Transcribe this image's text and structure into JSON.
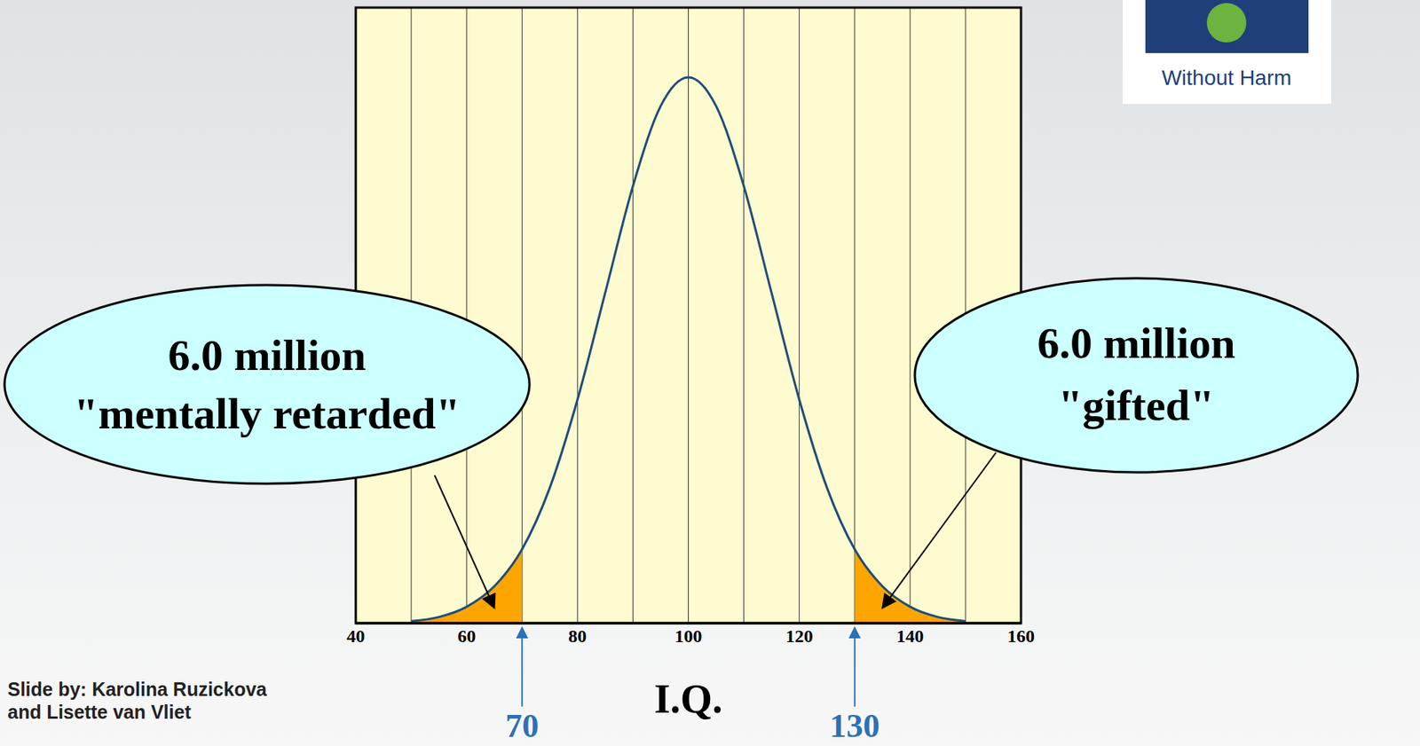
{
  "chart_data": {
    "type": "line",
    "x_label": "I.Q.",
    "x": [
      50,
      55,
      60,
      65,
      70,
      75,
      80,
      85,
      90,
      95,
      100,
      105,
      110,
      115,
      120,
      125,
      130,
      135,
      140,
      145,
      150
    ],
    "values": [
      0.0001,
      0.0003,
      0.0008,
      0.0018,
      0.0036,
      0.0066,
      0.0109,
      0.0161,
      0.0213,
      0.0252,
      0.0266,
      0.0252,
      0.0213,
      0.0161,
      0.0109,
      0.0066,
      0.0036,
      0.0018,
      0.0008,
      0.0003,
      0.0001
    ],
    "color": "#1f4e79",
    "xlim": [
      40,
      160
    ],
    "xticks": [
      40,
      60,
      80,
      100,
      120,
      140,
      160
    ],
    "ylim": [
      0,
      0.03
    ],
    "tick_labels": "x",
    "grid": true,
    "cutoffs": [
      70,
      130
    ],
    "cutoff_color": "#ffa500",
    "callouts": [
      {
        "lines": [
          "6.0 million",
          "\"mentally retarded\""
        ]
      },
      {
        "lines": [
          "6.0 million",
          "\"gifted\""
        ]
      }
    ],
    "credit": [
      "Slide by: Karolina Ruzickova",
      "and Lisette van Vliet"
    ],
    "logo_text": "Without Harm"
  }
}
